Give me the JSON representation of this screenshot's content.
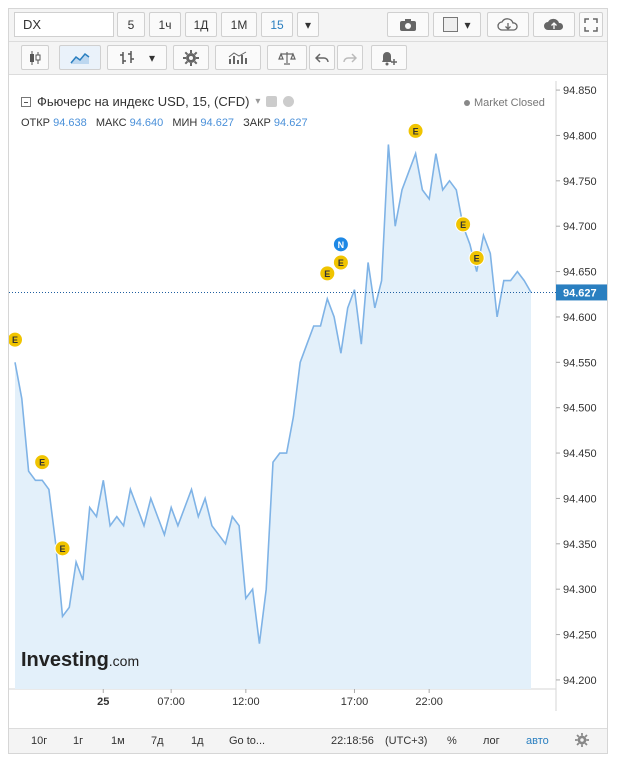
{
  "toolbar": {
    "symbol": "DX",
    "intervals": [
      "5",
      "1ч",
      "1Д",
      "1М",
      "15"
    ],
    "active_interval": "15"
  },
  "legend": {
    "title": "Фьючерс на индекс USD, 15, (CFD)",
    "open_label": "ОТКР",
    "open_value": "94.638",
    "high_label": "МАКС",
    "high_value": "94.640",
    "low_label": "МИН",
    "low_value": "94.627",
    "close_label": "ЗАКР",
    "close_value": "94.627",
    "status": "Market Closed"
  },
  "brand": {
    "name": "Investing",
    "suffix": ".com"
  },
  "bottom_bar": {
    "ranges": [
      "10г",
      "1г",
      "1м",
      "7д",
      "1д"
    ],
    "goto": "Go to...",
    "time": "22:18:56",
    "tz": "(UTC+3)",
    "percent": "%",
    "log": "лог",
    "auto": "авто"
  },
  "colors": {
    "line": "#7fb3e6",
    "area": "#e3f0fa",
    "accent": "#2a7fc0",
    "event": "#f0c400",
    "news": "#1e88e5"
  },
  "chart_data": {
    "type": "area",
    "ylim": [
      94.19,
      94.86
    ],
    "yticks": [
      "94.850",
      "94.800",
      "94.750",
      "94.700",
      "94.650",
      "94.600",
      "94.550",
      "94.500",
      "94.450",
      "94.400",
      "94.350",
      "94.300",
      "94.250",
      "94.200"
    ],
    "xtick_labels": [
      {
        "label": "25",
        "i": 13
      },
      {
        "label": "07:00",
        "i": 23
      },
      {
        "label": "12:00",
        "i": 34
      },
      {
        "label": "17:00",
        "i": 50
      },
      {
        "label": "22:00",
        "i": 61
      }
    ],
    "current_price": "94.627",
    "values": [
      94.55,
      94.51,
      94.43,
      94.42,
      94.42,
      94.41,
      94.35,
      94.27,
      94.28,
      94.33,
      94.31,
      94.39,
      94.38,
      94.42,
      94.37,
      94.38,
      94.37,
      94.41,
      94.39,
      94.37,
      94.4,
      94.38,
      94.36,
      94.39,
      94.37,
      94.39,
      94.41,
      94.38,
      94.4,
      94.37,
      94.36,
      94.35,
      94.38,
      94.37,
      94.29,
      94.3,
      94.24,
      94.3,
      94.44,
      94.45,
      94.45,
      94.49,
      94.55,
      94.57,
      94.59,
      94.59,
      94.62,
      94.6,
      94.56,
      94.61,
      94.63,
      94.57,
      94.66,
      94.61,
      94.64,
      94.79,
      94.7,
      94.74,
      94.76,
      94.78,
      94.74,
      94.73,
      94.78,
      94.74,
      94.75,
      94.74,
      94.7,
      94.68,
      94.65,
      94.69,
      94.67,
      94.6,
      94.64,
      94.64,
      94.65,
      94.64,
      94.627
    ],
    "events": [
      {
        "label": "E",
        "i": 0,
        "y": 94.575
      },
      {
        "label": "E",
        "i": 4,
        "y": 94.44
      },
      {
        "label": "E",
        "i": 7,
        "y": 94.345
      },
      {
        "label": "E",
        "i": 46,
        "y": 94.648
      },
      {
        "label": "N",
        "i": 48,
        "y": 94.68
      },
      {
        "label": "E",
        "i": 48,
        "y": 94.66
      },
      {
        "label": "E",
        "i": 59,
        "y": 94.805
      },
      {
        "label": "E",
        "i": 66,
        "y": 94.702
      },
      {
        "label": "E",
        "i": 68,
        "y": 94.665
      }
    ]
  }
}
